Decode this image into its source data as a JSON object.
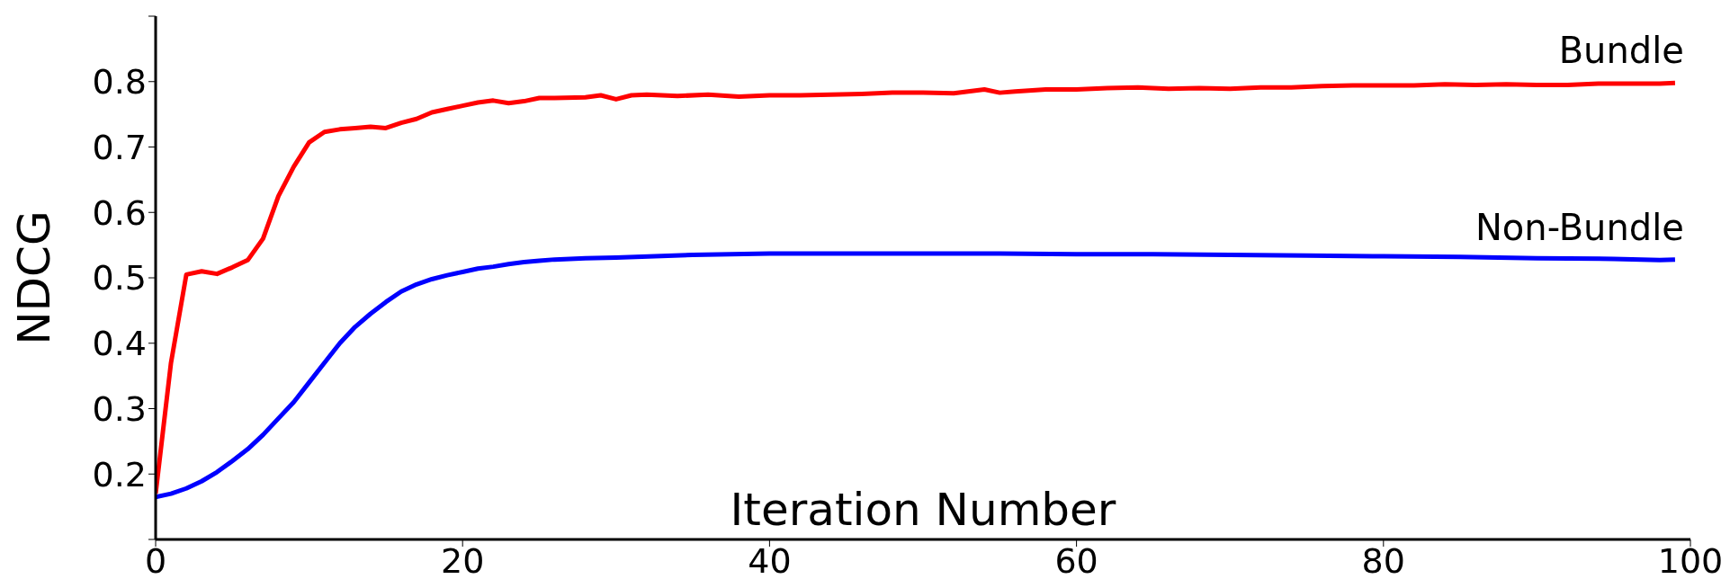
{
  "chart_data": {
    "type": "line",
    "xlabel": "Iteration Number",
    "ylabel": "NDCG",
    "xlim": [
      0,
      100
    ],
    "xticks": [
      0,
      20,
      40,
      60,
      80,
      100
    ],
    "ylim": [
      0.1,
      0.9
    ],
    "yticks": [
      {
        "value": 0.1,
        "label": null
      },
      0.2,
      0.3,
      0.4,
      0.5,
      0.6,
      0.7,
      0.8,
      {
        "value": 0.9,
        "label": null
      }
    ],
    "grid": false,
    "legend": false,
    "marker": "none",
    "line_style": "solid",
    "series": [
      {
        "name": "Bundle",
        "color": "#ff0000",
        "x": [
          0,
          1,
          2,
          3,
          4,
          5,
          6,
          7,
          8,
          9,
          10,
          11,
          12,
          13,
          14,
          15,
          16,
          17,
          18,
          19,
          20,
          21,
          22,
          23,
          24,
          25,
          26,
          28,
          29,
          30,
          31,
          32,
          34,
          36,
          38,
          40,
          42,
          44,
          46,
          48,
          50,
          52,
          54,
          55,
          56,
          58,
          60,
          62,
          64,
          66,
          68,
          70,
          72,
          74,
          76,
          78,
          80,
          82,
          84,
          86,
          88,
          90,
          92,
          94,
          96,
          98,
          99
        ],
        "values": [
          0.17,
          0.37,
          0.505,
          0.51,
          0.506,
          0.516,
          0.527,
          0.56,
          0.625,
          0.67,
          0.707,
          0.723,
          0.727,
          0.729,
          0.731,
          0.729,
          0.737,
          0.743,
          0.753,
          0.758,
          0.763,
          0.768,
          0.771,
          0.767,
          0.77,
          0.775,
          0.775,
          0.776,
          0.779,
          0.773,
          0.779,
          0.78,
          0.778,
          0.78,
          0.777,
          0.779,
          0.779,
          0.78,
          0.781,
          0.783,
          0.783,
          0.782,
          0.788,
          0.783,
          0.785,
          0.788,
          0.788,
          0.79,
          0.791,
          0.789,
          0.79,
          0.789,
          0.791,
          0.791,
          0.793,
          0.794,
          0.794,
          0.794,
          0.796,
          0.795,
          0.796,
          0.795,
          0.795,
          0.797,
          0.797,
          0.797,
          0.798
        ]
      },
      {
        "name": "Non-Bundle",
        "color": "#0000ff",
        "x": [
          0,
          1,
          2,
          3,
          4,
          5,
          6,
          7,
          8,
          9,
          10,
          11,
          12,
          13,
          14,
          15,
          16,
          17,
          18,
          19,
          20,
          21,
          22,
          23,
          24,
          25,
          26,
          28,
          30,
          35,
          40,
          45,
          50,
          55,
          60,
          65,
          70,
          75,
          80,
          85,
          90,
          95,
          98,
          99
        ],
        "values": [
          0.165,
          0.17,
          0.178,
          0.189,
          0.203,
          0.22,
          0.238,
          0.26,
          0.285,
          0.31,
          0.34,
          0.37,
          0.4,
          0.425,
          0.445,
          0.463,
          0.479,
          0.49,
          0.498,
          0.504,
          0.509,
          0.514,
          0.517,
          0.521,
          0.524,
          0.526,
          0.528,
          0.53,
          0.531,
          0.535,
          0.537,
          0.537,
          0.537,
          0.537,
          0.536,
          0.536,
          0.535,
          0.534,
          0.533,
          0.532,
          0.53,
          0.529,
          0.527,
          0.528
        ]
      }
    ]
  }
}
